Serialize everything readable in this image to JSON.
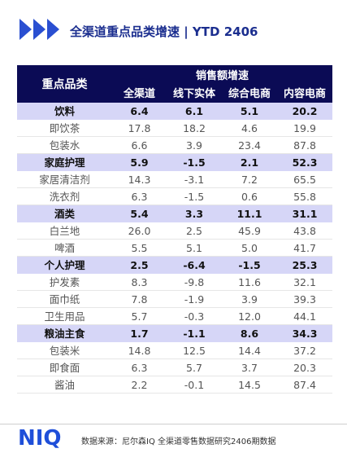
{
  "header": {
    "title": "全渠道重点品类增速 | YTD 2406"
  },
  "chart_data": {
    "type": "table",
    "row_header": "重点品类",
    "group_header": "销售额增速",
    "columns": [
      "全渠道",
      "线下实体",
      "综合电商",
      "内容电商"
    ],
    "rows": [
      {
        "name": "饮料",
        "level": "category",
        "values": [
          "6.4",
          "6.1",
          "5.1",
          "20.2"
        ]
      },
      {
        "name": "即饮茶",
        "level": "item",
        "values": [
          "17.8",
          "18.2",
          "4.6",
          "19.9"
        ]
      },
      {
        "name": "包装水",
        "level": "item",
        "values": [
          "6.6",
          "3.9",
          "23.4",
          "87.8"
        ]
      },
      {
        "name": "家庭护理",
        "level": "category",
        "values": [
          "5.9",
          "-1.5",
          "2.1",
          "52.3"
        ]
      },
      {
        "name": "家居清洁剂",
        "level": "item",
        "values": [
          "14.3",
          "-3.1",
          "7.2",
          "65.5"
        ]
      },
      {
        "name": "洗衣剂",
        "level": "item",
        "values": [
          "6.3",
          "-1.5",
          "0.6",
          "55.8"
        ]
      },
      {
        "name": "酒类",
        "level": "category",
        "values": [
          "5.4",
          "3.3",
          "11.1",
          "31.1"
        ]
      },
      {
        "name": "白兰地",
        "level": "item",
        "values": [
          "26.0",
          "2.5",
          "45.9",
          "43.8"
        ]
      },
      {
        "name": "啤酒",
        "level": "item",
        "values": [
          "5.5",
          "5.1",
          "5.0",
          "41.7"
        ]
      },
      {
        "name": "个人护理",
        "level": "category",
        "values": [
          "2.5",
          "-6.4",
          "-1.5",
          "25.3"
        ]
      },
      {
        "name": "护发素",
        "level": "item",
        "values": [
          "8.3",
          "-9.8",
          "11.6",
          "32.1"
        ]
      },
      {
        "name": "面巾纸",
        "level": "item",
        "values": [
          "7.8",
          "-1.9",
          "3.9",
          "39.3"
        ]
      },
      {
        "name": "卫生用品",
        "level": "item",
        "values": [
          "5.7",
          "-0.3",
          "12.0",
          "44.1"
        ]
      },
      {
        "name": "粮油主食",
        "level": "category",
        "values": [
          "1.7",
          "-1.1",
          "8.6",
          "34.3"
        ]
      },
      {
        "name": "包装米",
        "level": "item",
        "values": [
          "14.8",
          "12.5",
          "14.4",
          "37.2"
        ]
      },
      {
        "name": "即食面",
        "level": "item",
        "values": [
          "6.3",
          "5.7",
          "3.7",
          "20.3"
        ]
      },
      {
        "name": "酱油",
        "level": "item",
        "values": [
          "2.2",
          "-0.1",
          "14.5",
          "87.4"
        ]
      }
    ]
  },
  "footer": {
    "logo": "NIQ",
    "source": "数据来源：尼尔森IQ  全渠道零售数据研究2406期数据"
  },
  "colors": {
    "header_bg": "#0b0b55",
    "category_row_bg": "#d6d6f7",
    "accent": "#2a4fd1"
  }
}
